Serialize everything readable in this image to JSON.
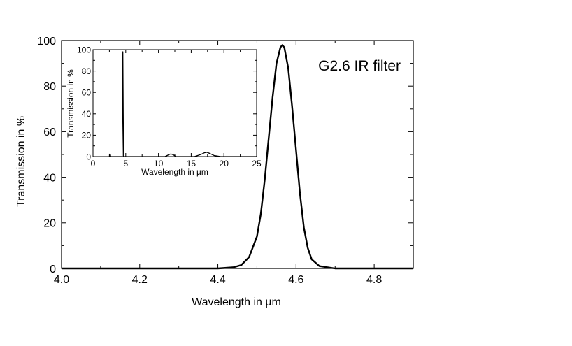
{
  "chart_data": [
    {
      "type": "line",
      "role": "main",
      "annotation": "G2.6 IR filter",
      "xlabel": "Wavelength in µm",
      "ylabel": "Transmission in %",
      "xlim": [
        4.0,
        4.9
      ],
      "ylim": [
        0,
        100
      ],
      "x_ticks": [
        "4.0",
        "4.2",
        "4.4",
        "4.6",
        "4.8"
      ],
      "y_ticks": [
        "0",
        "20",
        "40",
        "60",
        "80",
        "100"
      ],
      "grid": false,
      "series": [
        {
          "x": [
            4.0,
            4.4,
            4.44,
            4.46,
            4.48,
            4.5,
            4.51,
            4.52,
            4.53,
            4.54,
            4.55,
            4.56,
            4.565,
            4.57,
            4.58,
            4.59,
            4.6,
            4.61,
            4.62,
            4.63,
            4.64,
            4.66,
            4.7,
            4.9
          ],
          "y": [
            0,
            0,
            0.5,
            1.5,
            5,
            14,
            24,
            39,
            57,
            75,
            90,
            97,
            98,
            97,
            88,
            71,
            52,
            33,
            18,
            9,
            4,
            1,
            0,
            0
          ]
        }
      ]
    },
    {
      "type": "line",
      "role": "inset",
      "xlabel": "Wavelength in µm",
      "ylabel": "Transmission in %",
      "xlim": [
        0,
        25
      ],
      "ylim": [
        0,
        100
      ],
      "x_ticks": [
        "0",
        "5",
        "10",
        "15",
        "20",
        "25"
      ],
      "y_ticks": [
        "0",
        "20",
        "40",
        "60",
        "80",
        "100"
      ],
      "grid": false,
      "series": [
        {
          "x": [
            2.5,
            2.55,
            2.6,
            2.65,
            2.7,
            4.45,
            4.5,
            4.56,
            4.62,
            4.67,
            11.0,
            11.5,
            11.9,
            12.3,
            12.7,
            15.5,
            16.5,
            17.0,
            17.4,
            17.8,
            18.5,
            19.5,
            25
          ],
          "y": [
            0,
            2,
            2.5,
            2,
            0,
            0,
            40,
            98,
            40,
            0,
            0,
            1.5,
            2.5,
            1.5,
            0,
            0,
            2,
            3.5,
            4,
            3,
            1,
            0,
            0
          ]
        }
      ]
    }
  ]
}
